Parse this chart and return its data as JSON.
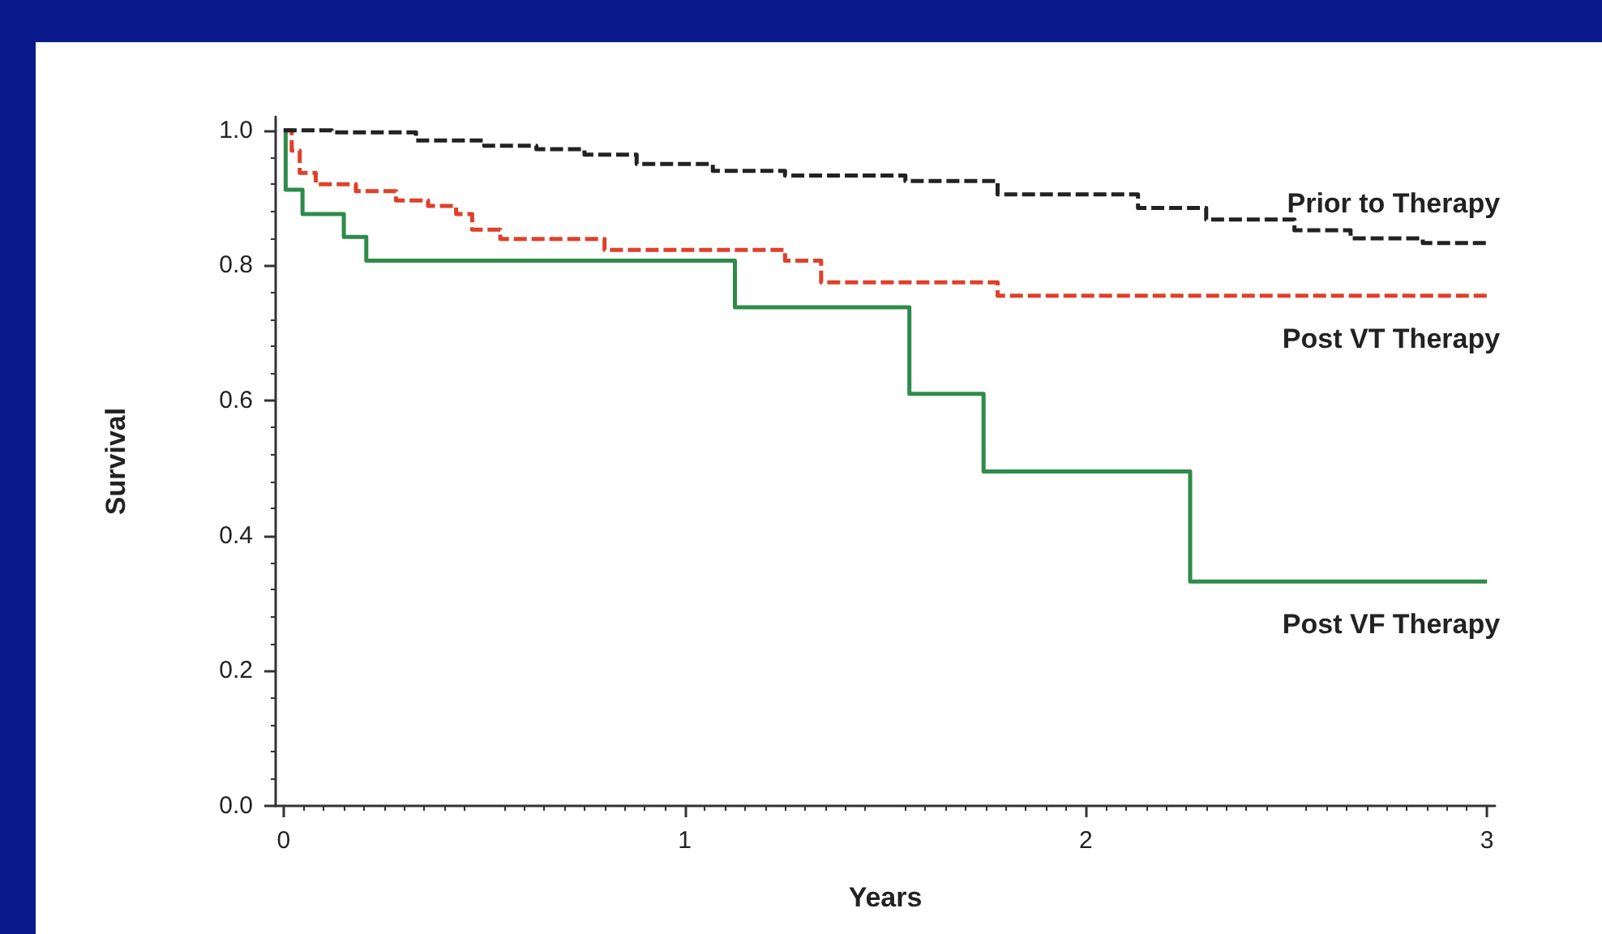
{
  "chart_data": {
    "type": "step",
    "xlabel": "Years",
    "ylabel": "Survival",
    "xlim": [
      -0.02,
      3.02
    ],
    "ylim": [
      0,
      1.02
    ],
    "xticks": [
      0,
      1,
      2,
      3
    ],
    "yticks": [
      {
        "value": 0,
        "label": "0.0"
      },
      {
        "value": 0.2,
        "label": "0.2"
      },
      {
        "value": 0.4,
        "label": "0.4"
      },
      {
        "value": 0.6,
        "label": "0.6"
      },
      {
        "value": 0.8,
        "label": "0.8"
      },
      {
        "value": 1,
        "label": "1.0"
      }
    ],
    "grid": false,
    "legend": false,
    "marker": "none",
    "series": [
      {
        "name": "Prior to Therapy",
        "color": "#222222",
        "line_style": "dashed",
        "x": [
          0,
          0.12,
          0.33,
          0.5,
          0.63,
          0.75,
          0.88,
          1.07,
          1.25,
          1.55,
          1.78,
          2.13,
          2.3,
          2.52,
          2.66,
          2.84,
          3.0
        ],
        "values": [
          1.0,
          0.997,
          0.985,
          0.977,
          0.972,
          0.964,
          0.95,
          0.94,
          0.933,
          0.925,
          0.905,
          0.885,
          0.868,
          0.852,
          0.84,
          0.833,
          0.833
        ]
      },
      {
        "name": "Post VT Therapy",
        "color": "#e0402a",
        "line_style": "dashed",
        "x": [
          0,
          0.02,
          0.04,
          0.08,
          0.18,
          0.28,
          0.36,
          0.43,
          0.47,
          0.54,
          0.8,
          1.25,
          1.34,
          1.78,
          3.0
        ],
        "values": [
          1.0,
          0.97,
          0.937,
          0.92,
          0.91,
          0.896,
          0.888,
          0.876,
          0.853,
          0.839,
          0.823,
          0.807,
          0.775,
          0.755,
          0.755
        ]
      },
      {
        "name": "Post VF Therapy",
        "color": "#2e8b4a",
        "line_style": "solid",
        "x": [
          0,
          0.005,
          0.047,
          0.15,
          0.206,
          1.125,
          1.56,
          1.745,
          2.26,
          3.0
        ],
        "values": [
          1.0,
          0.912,
          0.876,
          0.842,
          0.807,
          0.738,
          0.61,
          0.495,
          0.332,
          0.332
        ]
      }
    ]
  }
}
